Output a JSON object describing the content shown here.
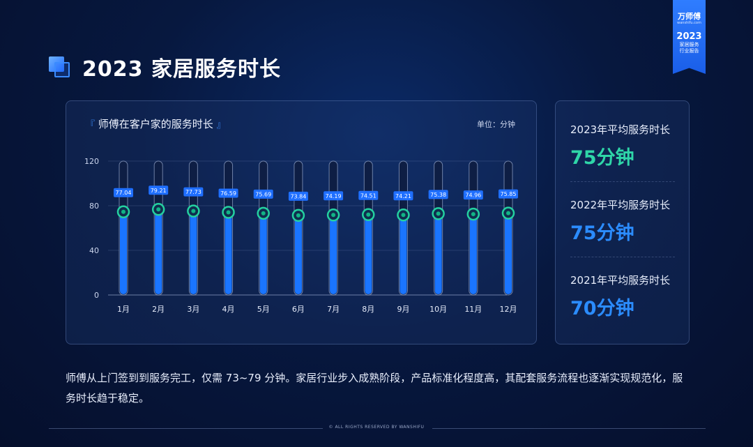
{
  "header": {
    "title": "2023 家居服务时长"
  },
  "brand": {
    "logo": "万师傅",
    "site": "wanshifu.com",
    "year": "2023",
    "line1": "家居服务",
    "line2": "行业报告"
  },
  "chart_panel": {
    "title": "师傅在客户家的服务时长",
    "unit": "单位：分钟"
  },
  "chart_data": {
    "type": "bar",
    "title": "师傅在客户家的服务时长",
    "categories": [
      "1月",
      "2月",
      "3月",
      "4月",
      "5月",
      "6月",
      "7月",
      "8月",
      "9月",
      "10月",
      "11月",
      "12月"
    ],
    "values": [
      77.04,
      79.21,
      77.73,
      76.59,
      75.69,
      73.84,
      74.19,
      74.51,
      74.21,
      75.38,
      74.96,
      75.85
    ],
    "ylim": [
      0,
      120
    ],
    "yticks": [
      0,
      40,
      80,
      120
    ],
    "grid": true,
    "colors": {
      "bar": "#1a75ff",
      "track": "#0e1e44",
      "marker": "#24d1a0",
      "label_bg": "#1f6fff"
    }
  },
  "stats": [
    {
      "label": "2023年平均服务时长",
      "value": "75分钟",
      "color": "#2fd6a8"
    },
    {
      "label": "2022年平均服务时长",
      "value": "75分钟",
      "color": "#2b8cff"
    },
    {
      "label": "2021年平均服务时长",
      "value": "70分钟",
      "color": "#2b8cff"
    }
  ],
  "summary": "师傅从上门签到到服务完工，仅需 73~79 分钟。家居行业步入成熟阶段，产品标准化程度高，其配套服务流程也逐渐实现规范化，服务时长趋于稳定。",
  "footer": "© ALL RIGHTS RESERVED BY WANSHIFU"
}
